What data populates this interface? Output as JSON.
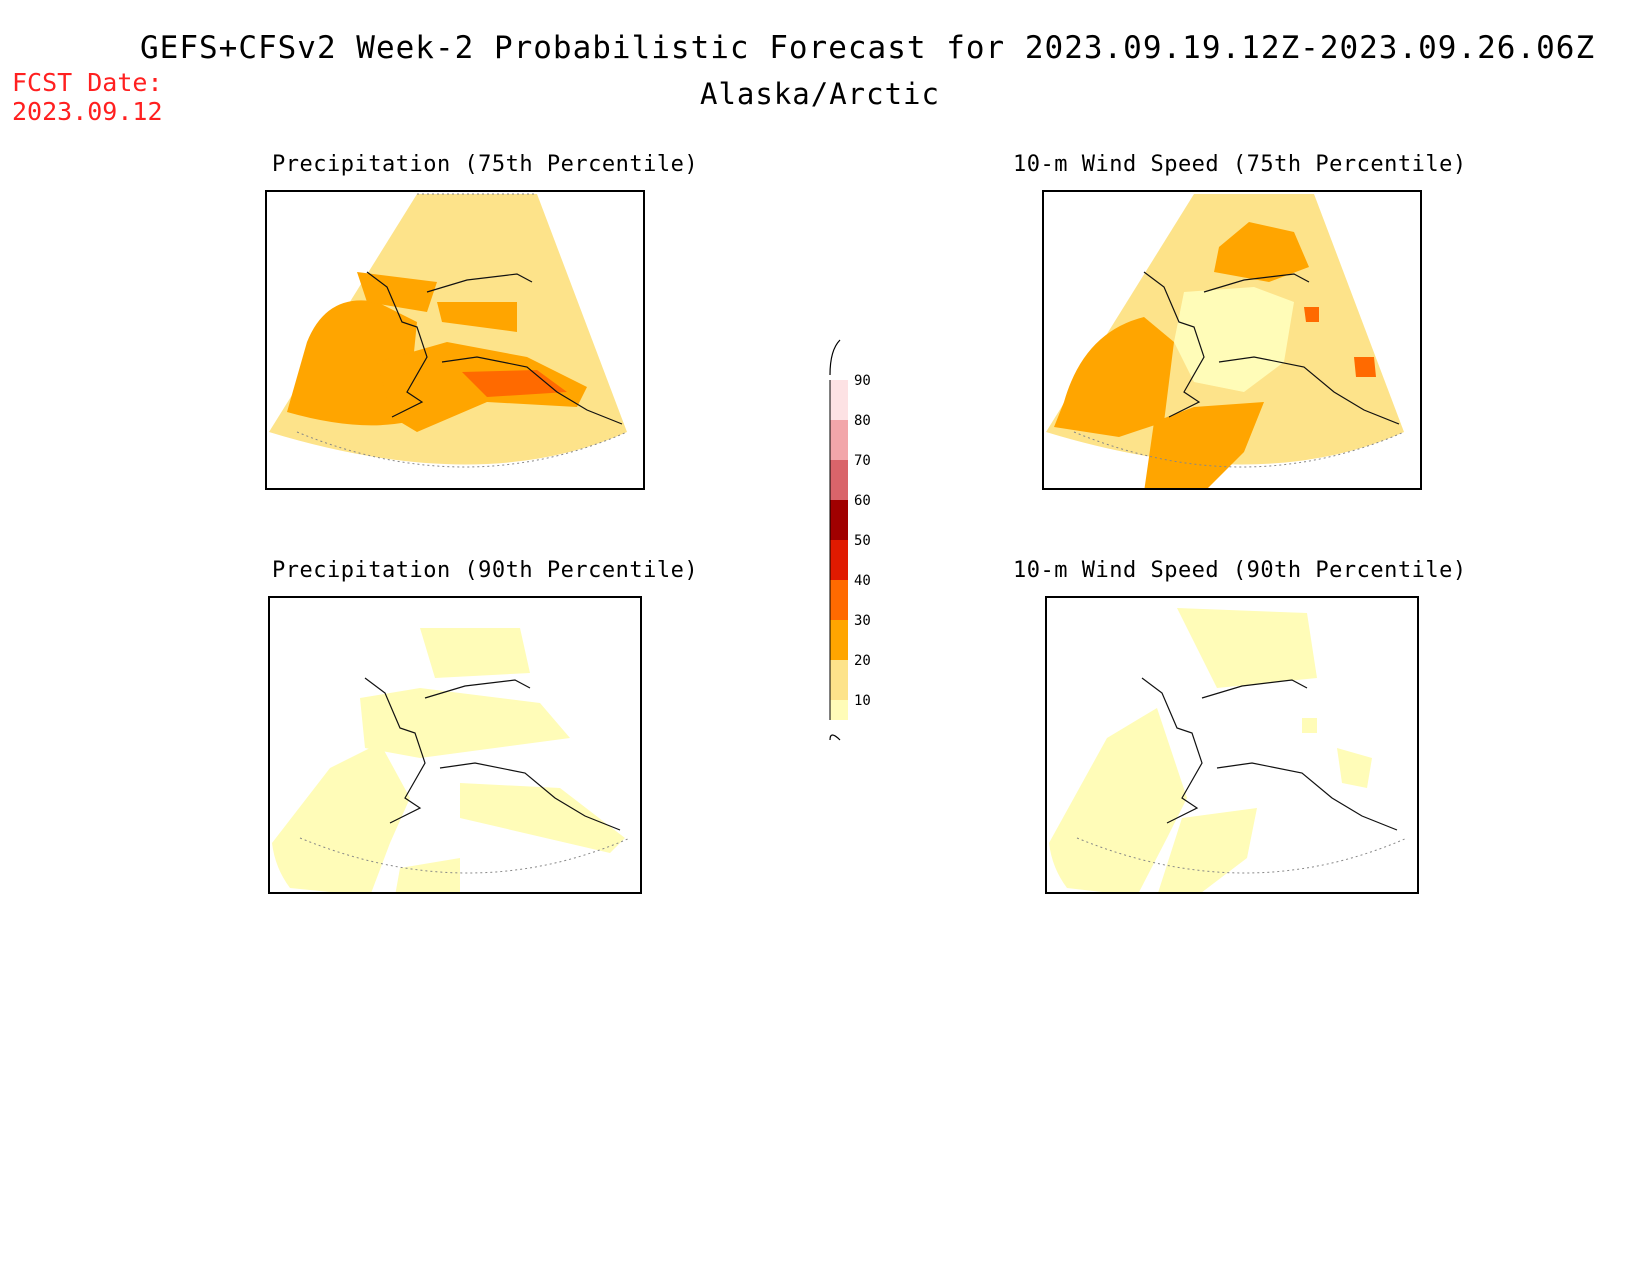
{
  "header": {
    "title": "GEFS+CFSv2 Week-2 Probabilistic Forecast for 2023.09.19.12Z-2023.09.26.06Z",
    "subtitle": "Alaska/Arctic",
    "fcst_label": "FCST Date:",
    "fcst_value": "2023.09.12"
  },
  "panels": [
    {
      "id": "precip75",
      "title": "Precipitation (75th Percentile)"
    },
    {
      "id": "wind75",
      "title": "10-m Wind Speed (75th Percentile)"
    },
    {
      "id": "precip90",
      "title": "Precipitation (90th Percentile)"
    },
    {
      "id": "wind90",
      "title": "10-m Wind Speed (90th Percentile)"
    }
  ],
  "colorbar": {
    "levels": [
      "90",
      "80",
      "70",
      "60",
      "50",
      "40",
      "30",
      "20",
      "10"
    ],
    "colors": {
      "10": "#fffcb8",
      "20": "#fde38a",
      "30": "#ffa500",
      "40": "#ff6a00",
      "50": "#e01a00",
      "60": "#a00000",
      "70": "#d9646a",
      "80": "#f2a6aa",
      "90": "#fde2e4"
    }
  }
}
